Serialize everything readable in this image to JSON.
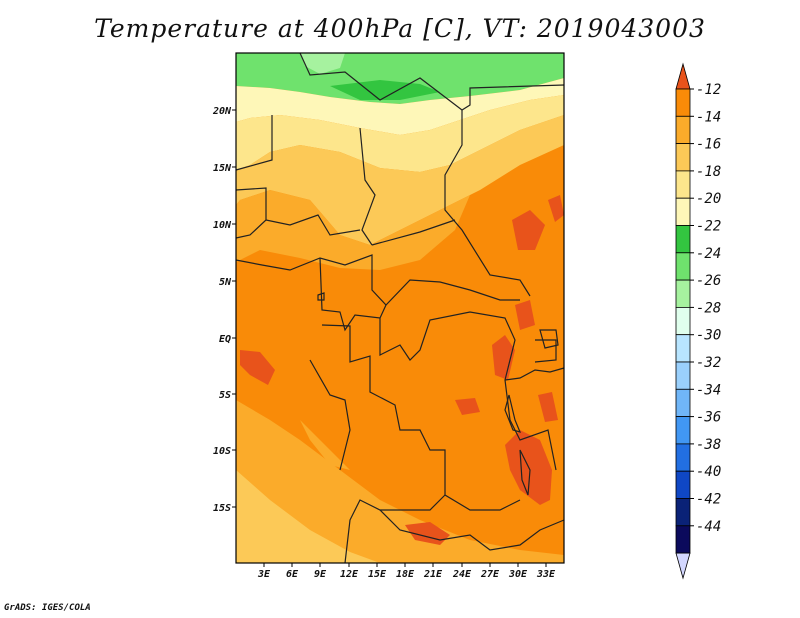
{
  "title": "Temperature at 400hPa [C], VT: 2019043003",
  "credit": "GrADS: IGES/COLA",
  "map": {
    "lat_ticks": [
      "20N",
      "15N",
      "10N",
      "5N",
      "EQ",
      "5S",
      "10S",
      "15S"
    ],
    "lon_ticks": [
      "3E",
      "6E",
      "9E",
      "12E",
      "15E",
      "18E",
      "21E",
      "24E",
      "27E",
      "30E",
      "33E"
    ]
  },
  "colorbar": {
    "labels": [
      "-12",
      "-14",
      "-16",
      "-18",
      "-20",
      "-22",
      "-24",
      "-26",
      "-28",
      "-30",
      "-32",
      "-34",
      "-36",
      "-38",
      "-40",
      "-42",
      "-44"
    ],
    "colors": [
      "#e8531b",
      "#f98b08",
      "#fbab2a",
      "#fcc957",
      "#fde68c",
      "#fef7b8",
      "#33c540",
      "#6fe26d",
      "#a6f29f",
      "#e0ffed",
      "#b8e5ff",
      "#9ad0fc",
      "#70b6f8",
      "#4197f3",
      "#226fe2",
      "#0f47c5",
      "#0a2277",
      "#0b0a5c",
      "#d3d7ff"
    ]
  }
}
